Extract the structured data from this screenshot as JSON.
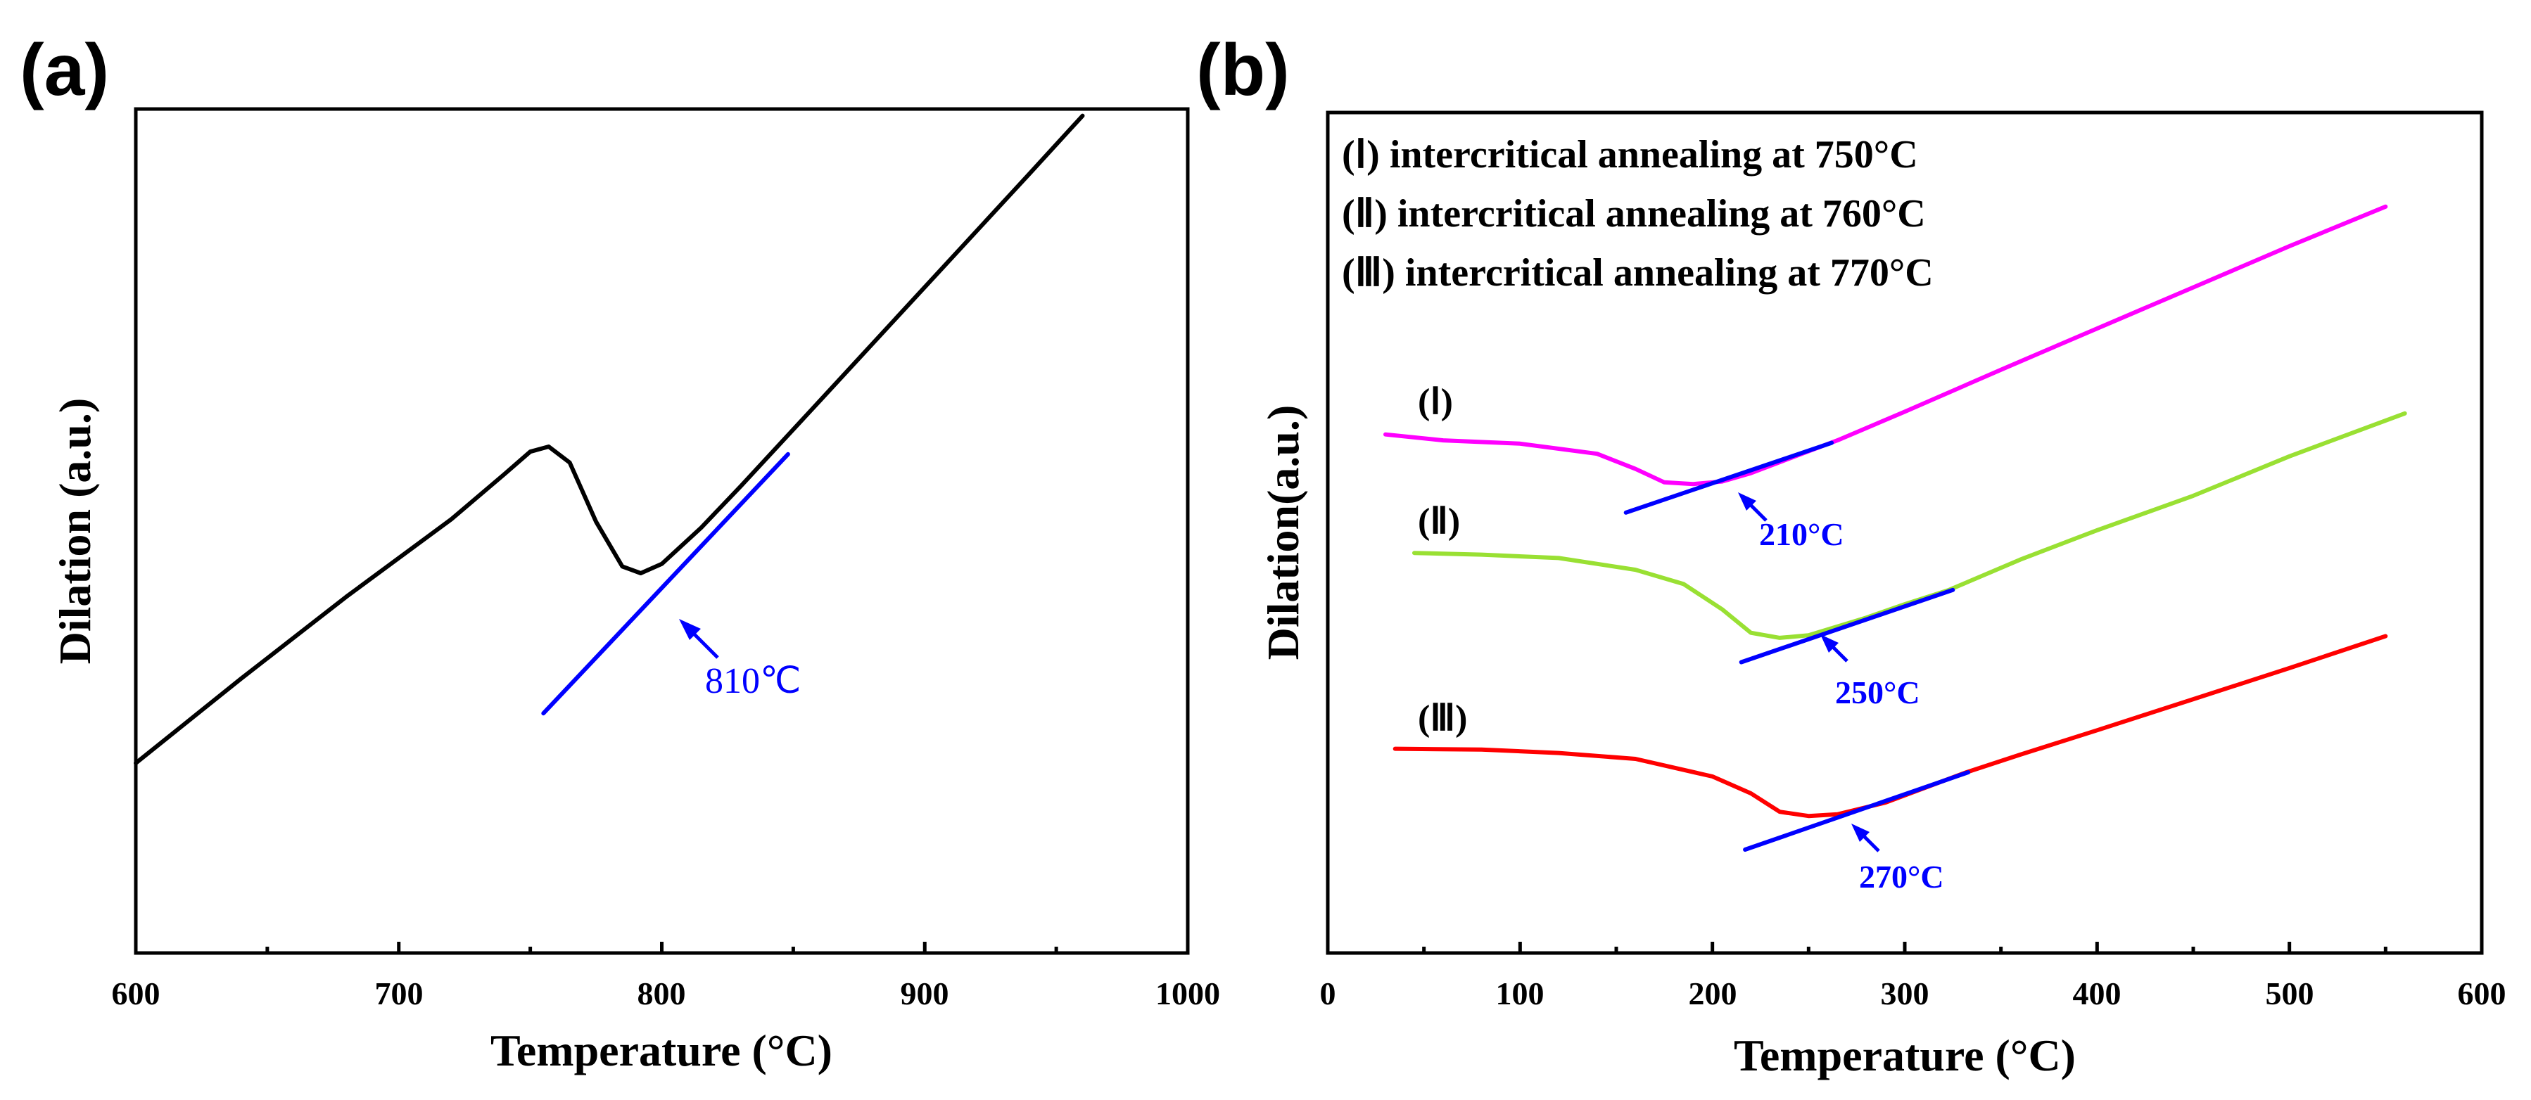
{
  "chart_data": [
    {
      "panel_label": "(a)",
      "type": "line",
      "xlabel": "Temperature (°C)",
      "ylabel": "Dilation (a.u.)",
      "xlim": [
        600,
        1000
      ],
      "ylim": [
        0,
        100
      ],
      "x_ticks": [
        600,
        700,
        800,
        900,
        1000
      ],
      "x_tick_labels": [
        "600",
        "700",
        "800",
        "900",
        "1000"
      ],
      "y_ticks_shown": false,
      "series": [
        {
          "name": "dilation",
          "color": "#000000",
          "x": [
            600,
            640,
            680,
            720,
            740,
            750,
            757,
            765,
            775,
            785,
            792,
            800,
            815,
            830,
            860,
            900,
            940,
            960
          ],
          "y": [
            22.5,
            32.5,
            42.2,
            51.4,
            56.7,
            59.4,
            60.0,
            58.1,
            51.1,
            45.8,
            45.0,
            46.1,
            50.4,
            55.3,
            65.4,
            78.9,
            92.4,
            99.2
          ]
        },
        {
          "name": "tangent",
          "color": "#0000ff",
          "x": [
            755,
            848
          ],
          "y": [
            28.4,
            59.1
          ]
        }
      ],
      "annotations": [
        {
          "text": "810℃",
          "color": "#0000ff",
          "x": 810,
          "y": 40
        }
      ]
    },
    {
      "panel_label": "(b)",
      "type": "line",
      "xlabel": "Temperature (°C)",
      "ylabel": "Dilation(a.u.)",
      "xlim": [
        0,
        600
      ],
      "ylim": [
        0,
        100
      ],
      "x_ticks": [
        0,
        100,
        200,
        300,
        400,
        500,
        600
      ],
      "x_tick_labels": [
        "0",
        "100",
        "200",
        "300",
        "400",
        "500",
        "600"
      ],
      "y_ticks_shown": false,
      "legend": [
        "(Ⅰ) intercritical annealing at 750°C",
        "(Ⅱ) intercritical annealing at 760°C",
        "(Ⅲ) intercritical annealing at 770°C"
      ],
      "series": [
        {
          "name": "Ⅰ",
          "label": "(Ⅰ)",
          "color": "#ff00ff",
          "x": [
            30,
            60,
            100,
            140,
            160,
            175,
            190,
            205,
            220,
            250,
            265,
            300,
            350,
            400,
            450,
            500,
            550
          ],
          "y": [
            61.7,
            61.0,
            60.6,
            59.4,
            57.6,
            56.0,
            55.8,
            56.1,
            57.1,
            59.7,
            61.0,
            64.4,
            69.4,
            74.3,
            79.2,
            84.1,
            88.8
          ]
        },
        {
          "name": "Ⅰ-tangent",
          "color": "#0000ff",
          "x": [
            155,
            262
          ],
          "y": [
            52.4,
            60.7
          ]
        },
        {
          "name": "Ⅱ",
          "label": "(Ⅱ)",
          "color": "#99e033",
          "x": [
            45,
            80,
            120,
            160,
            185,
            205,
            220,
            235,
            250,
            280,
            300,
            323,
            360,
            400,
            450,
            500,
            560
          ],
          "y": [
            47.6,
            47.4,
            47.0,
            45.6,
            43.9,
            40.9,
            38.1,
            37.5,
            37.8,
            39.9,
            41.5,
            43.2,
            46.8,
            50.3,
            54.4,
            59.1,
            64.2
          ]
        },
        {
          "name": "Ⅱ-tangent",
          "color": "#0000ff",
          "x": [
            215,
            325
          ],
          "y": [
            34.6,
            43.2
          ]
        },
        {
          "name": "Ⅲ",
          "label": "(Ⅲ)",
          "color": "#ff0000",
          "x": [
            35,
            80,
            120,
            160,
            200,
            220,
            235,
            250,
            265,
            290,
            332,
            360,
            400,
            450,
            500,
            550
          ],
          "y": [
            24.3,
            24.2,
            23.8,
            23.1,
            21.0,
            19.0,
            16.8,
            16.3,
            16.5,
            17.9,
            21.5,
            23.6,
            26.5,
            30.2,
            33.9,
            37.7
          ]
        },
        {
          "name": "Ⅲ-tangent",
          "color": "#0000ff",
          "x": [
            217,
            333
          ],
          "y": [
            12.3,
            21.5
          ]
        }
      ],
      "annotations": [
        {
          "text": "210°C",
          "color": "#0000ff",
          "x": 210,
          "y": 49
        },
        {
          "text": "250°C",
          "color": "#0000ff",
          "x": 250,
          "y": 31
        },
        {
          "text": "270°C",
          "color": "#0000ff",
          "x": 270,
          "y": 9
        }
      ]
    }
  ]
}
